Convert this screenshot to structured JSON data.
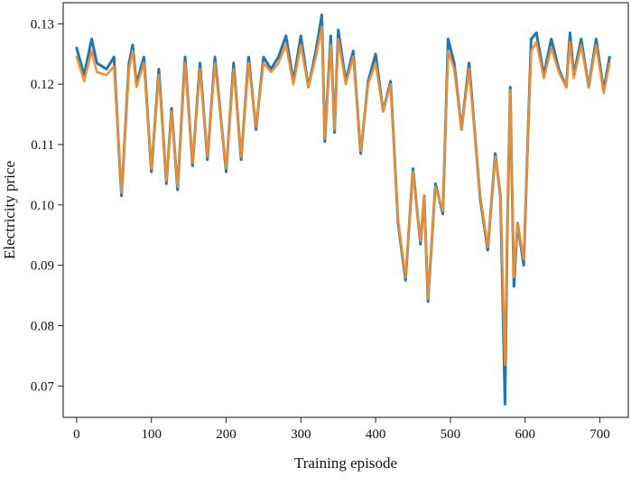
{
  "chart_data": {
    "type": "line",
    "title": "",
    "xlabel": "Training episode",
    "ylabel": "Electricity price",
    "xlim": [
      -18,
      738
    ],
    "ylim": [
      0.0648,
      0.1335
    ],
    "xticks": [
      0,
      100,
      200,
      300,
      400,
      500,
      600,
      700
    ],
    "xtick_labels": [
      "0",
      "100",
      "200",
      "300",
      "400",
      "500",
      "600",
      "700"
    ],
    "yticks": [
      0.07,
      0.08,
      0.09,
      0.1,
      0.11,
      0.12,
      0.13
    ],
    "ytick_labels": [
      "0.07",
      "0.08",
      "0.09",
      "0.10",
      "0.11",
      "0.12",
      "0.13"
    ],
    "grid": false,
    "legend": "none",
    "series": [
      {
        "color": "#1f77b4",
        "x": [
          0,
          10,
          20,
          27,
          40,
          50,
          57,
          60,
          70,
          75,
          80,
          90,
          100,
          110,
          120,
          127,
          135,
          145,
          155,
          165,
          175,
          185,
          200,
          210,
          220,
          230,
          240,
          250,
          260,
          270,
          280,
          290,
          300,
          310,
          320,
          328,
          332,
          340,
          345,
          350,
          360,
          370,
          380,
          390,
          400,
          410,
          420,
          430,
          440,
          450,
          460,
          465,
          470,
          480,
          490,
          497,
          505,
          515,
          525,
          540,
          550,
          560,
          567,
          573,
          576,
          580,
          585,
          590,
          598,
          608,
          615,
          625,
          635,
          645,
          655,
          660,
          665,
          675,
          685,
          695,
          705,
          713
        ],
        "y": [
          0.126,
          0.1215,
          0.1275,
          0.1235,
          0.1225,
          0.1245,
          0.108,
          0.1015,
          0.1235,
          0.1265,
          0.12,
          0.1245,
          0.1055,
          0.1225,
          0.1035,
          0.116,
          0.1025,
          0.1245,
          0.1065,
          0.1235,
          0.1075,
          0.1245,
          0.1055,
          0.1235,
          0.1075,
          0.1245,
          0.1125,
          0.1245,
          0.1225,
          0.1245,
          0.128,
          0.1205,
          0.128,
          0.1195,
          0.1255,
          0.1315,
          0.1105,
          0.128,
          0.112,
          0.129,
          0.1205,
          0.1255,
          0.1085,
          0.1205,
          0.125,
          0.1155,
          0.1205,
          0.097,
          0.0875,
          0.106,
          0.0935,
          0.1015,
          0.084,
          0.1035,
          0.0985,
          0.1275,
          0.1235,
          0.1125,
          0.1235,
          0.101,
          0.0925,
          0.1085,
          0.1015,
          0.067,
          0.095,
          0.1195,
          0.0865,
          0.097,
          0.09,
          0.1275,
          0.1285,
          0.1215,
          0.1275,
          0.1225,
          0.1195,
          0.1285,
          0.1215,
          0.1275,
          0.1195,
          0.1275,
          0.119,
          0.1245
        ]
      },
      {
        "color": "#f28e2b",
        "x": [
          0,
          10,
          20,
          27,
          40,
          50,
          57,
          60,
          70,
          75,
          80,
          90,
          100,
          110,
          120,
          127,
          135,
          145,
          155,
          165,
          175,
          185,
          200,
          210,
          220,
          230,
          240,
          250,
          260,
          270,
          280,
          290,
          300,
          310,
          320,
          328,
          332,
          340,
          345,
          350,
          360,
          370,
          380,
          390,
          400,
          410,
          420,
          430,
          440,
          450,
          460,
          465,
          470,
          480,
          490,
          497,
          505,
          515,
          525,
          540,
          550,
          560,
          567,
          573,
          576,
          580,
          585,
          590,
          598,
          608,
          615,
          625,
          635,
          645,
          655,
          660,
          665,
          675,
          685,
          695,
          705,
          713
        ],
        "y": [
          0.1245,
          0.1205,
          0.1255,
          0.122,
          0.1215,
          0.123,
          0.1085,
          0.102,
          0.1225,
          0.1255,
          0.1195,
          0.1235,
          0.106,
          0.1215,
          0.104,
          0.1155,
          0.103,
          0.1235,
          0.107,
          0.1225,
          0.108,
          0.1235,
          0.106,
          0.1225,
          0.108,
          0.1235,
          0.113,
          0.1235,
          0.122,
          0.1235,
          0.1265,
          0.12,
          0.1265,
          0.1195,
          0.1245,
          0.1295,
          0.111,
          0.1265,
          0.1125,
          0.1275,
          0.12,
          0.1245,
          0.109,
          0.12,
          0.1235,
          0.1155,
          0.12,
          0.0975,
          0.088,
          0.1055,
          0.094,
          0.1015,
          0.0845,
          0.103,
          0.099,
          0.1255,
          0.1225,
          0.1125,
          0.1225,
          0.1015,
          0.093,
          0.108,
          0.102,
          0.0735,
          0.0955,
          0.119,
          0.088,
          0.097,
          0.091,
          0.1255,
          0.127,
          0.121,
          0.126,
          0.122,
          0.1195,
          0.127,
          0.121,
          0.1265,
          0.1195,
          0.1265,
          0.1185,
          0.1235
        ]
      }
    ]
  }
}
